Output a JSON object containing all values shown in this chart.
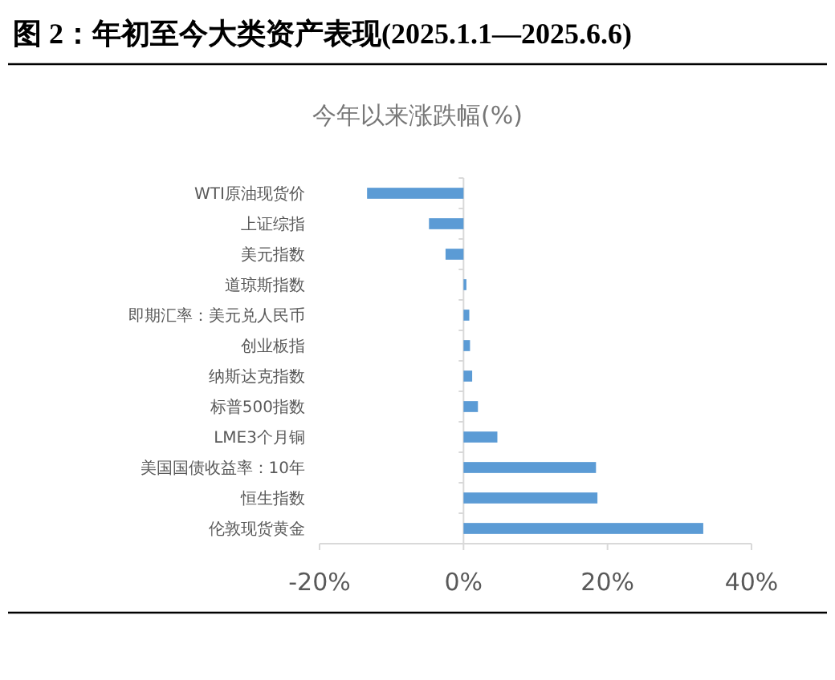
{
  "chart_data": {
    "type": "bar",
    "orientation": "horizontal",
    "title": "图 2：年初至今大类资产表现(2025.1.1—2025.6.6)",
    "subtitle": "今年以来涨跌幅(%)",
    "categories": [
      "WTI原油现货价",
      "上证综指",
      "美元指数",
      "道琼斯指数",
      "即期汇率：美元兑人民币",
      "创业板指",
      "纳斯达克指数",
      "标普500指数",
      "LME3个月铜",
      "美国国债收益率：10年",
      "恒生指数",
      "伦敦现货黄金"
    ],
    "values": [
      -13.4,
      -4.8,
      -2.5,
      0.4,
      0.8,
      0.9,
      1.2,
      2.0,
      4.7,
      18.4,
      18.6,
      33.3
    ],
    "color": "#5b9bd5",
    "xlim": [
      -20,
      40
    ],
    "xticks": [
      {
        "value": -20,
        "label": "-20%"
      },
      {
        "value": 0,
        "label": "0%"
      },
      {
        "value": 20,
        "label": "20%"
      },
      {
        "value": 40,
        "label": "40%"
      }
    ],
    "legend": false
  }
}
